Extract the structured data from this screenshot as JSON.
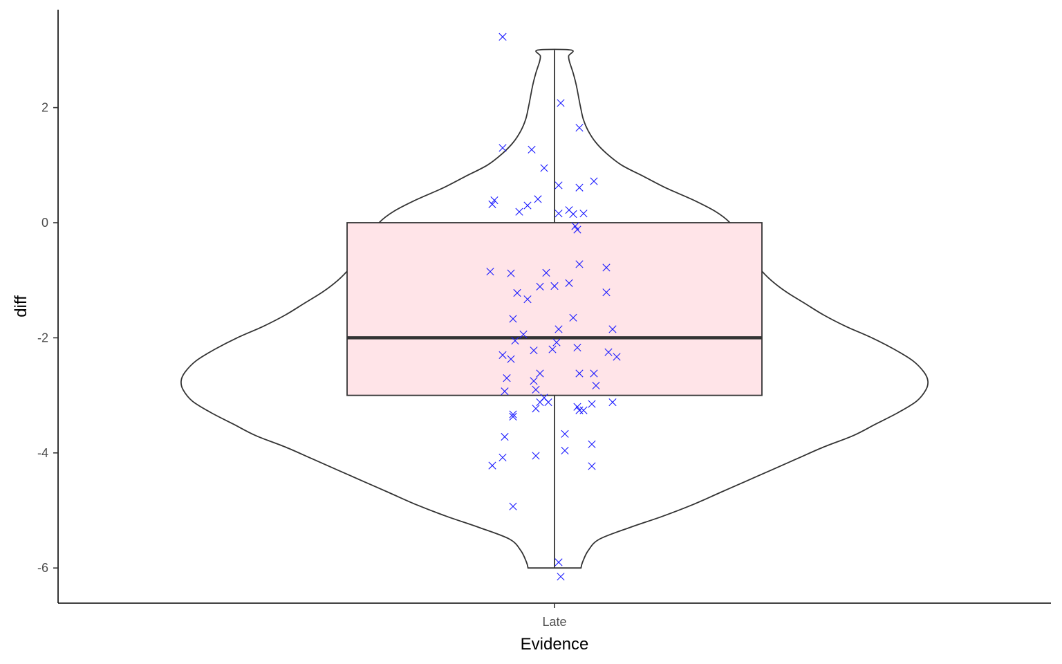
{
  "chart_data": {
    "type": "violin",
    "xlabel": "Evidence",
    "ylabel": "diff",
    "categories": [
      "Late"
    ],
    "ylim": [
      -6.6,
      3.6
    ],
    "yticks": [
      -6,
      -4,
      -2,
      0,
      2
    ],
    "ytick_labels": [
      "-6",
      "-4",
      "-2",
      "0",
      "2"
    ],
    "grid": false,
    "legend": "none",
    "colors": {
      "violin_outline": "#333333",
      "box_fill": "#ffe4e8",
      "box_outline": "#333333",
      "points": "#1a1aff",
      "axis": "#000000"
    },
    "violin": {
      "category": "Late",
      "range": [
        -6,
        3
      ],
      "density": [
        [
          -6.0,
          0.071
        ],
        [
          -5.9,
          0.075
        ],
        [
          -5.7,
          0.09
        ],
        [
          -5.5,
          0.12
        ],
        [
          -5.3,
          0.2
        ],
        [
          -5.1,
          0.29
        ],
        [
          -4.9,
          0.37
        ],
        [
          -4.7,
          0.44
        ],
        [
          -4.5,
          0.51
        ],
        [
          -4.3,
          0.58
        ],
        [
          -4.1,
          0.65
        ],
        [
          -3.9,
          0.72
        ],
        [
          -3.7,
          0.8
        ],
        [
          -3.5,
          0.86
        ],
        [
          -3.3,
          0.92
        ],
        [
          -3.1,
          0.97
        ],
        [
          -2.9,
          0.995
        ],
        [
          -2.75,
          1.0
        ],
        [
          -2.6,
          0.99
        ],
        [
          -2.4,
          0.96
        ],
        [
          -2.2,
          0.91
        ],
        [
          -2.0,
          0.85
        ],
        [
          -1.8,
          0.78
        ],
        [
          -1.6,
          0.72
        ],
        [
          -1.4,
          0.67
        ],
        [
          -1.2,
          0.62
        ],
        [
          -1.0,
          0.58
        ],
        [
          -0.8,
          0.55
        ],
        [
          -0.6,
          0.53
        ],
        [
          -0.4,
          0.51
        ],
        [
          -0.2,
          0.49
        ],
        [
          0.0,
          0.47
        ],
        [
          0.2,
          0.43
        ],
        [
          0.4,
          0.37
        ],
        [
          0.6,
          0.3
        ],
        [
          0.8,
          0.24
        ],
        [
          1.0,
          0.18
        ],
        [
          1.2,
          0.14
        ],
        [
          1.4,
          0.11
        ],
        [
          1.6,
          0.09
        ],
        [
          1.8,
          0.077
        ],
        [
          2.0,
          0.07
        ],
        [
          2.2,
          0.064
        ],
        [
          2.4,
          0.058
        ],
        [
          2.6,
          0.05
        ],
        [
          2.8,
          0.04
        ],
        [
          2.9,
          0.038
        ],
        [
          3.0,
          0.045
        ]
      ]
    },
    "box": {
      "category": "Late",
      "min": -6,
      "q1": -3,
      "median": -2,
      "q3": 0,
      "max": 3
    },
    "points": [
      {
        "x": -0.25,
        "y": 3.23
      },
      {
        "x": 0.03,
        "y": 2.08
      },
      {
        "x": 0.12,
        "y": 1.65
      },
      {
        "x": -0.25,
        "y": 1.3
      },
      {
        "x": -0.11,
        "y": 1.27
      },
      {
        "x": -0.05,
        "y": 0.95
      },
      {
        "x": 0.19,
        "y": 0.72
      },
      {
        "x": 0.02,
        "y": 0.65
      },
      {
        "x": 0.12,
        "y": 0.61
      },
      {
        "x": -0.29,
        "y": 0.39
      },
      {
        "x": -0.3,
        "y": 0.32
      },
      {
        "x": -0.08,
        "y": 0.41
      },
      {
        "x": -0.13,
        "y": 0.3
      },
      {
        "x": -0.17,
        "y": 0.19
      },
      {
        "x": 0.07,
        "y": 0.22
      },
      {
        "x": 0.09,
        "y": 0.15
      },
      {
        "x": 0.14,
        "y": 0.16
      },
      {
        "x": 0.02,
        "y": 0.16
      },
      {
        "x": 0.1,
        "y": -0.06
      },
      {
        "x": 0.11,
        "y": -0.12
      },
      {
        "x": -0.31,
        "y": -0.85
      },
      {
        "x": -0.21,
        "y": -0.88
      },
      {
        "x": -0.04,
        "y": -0.87
      },
      {
        "x": 0.12,
        "y": -0.72
      },
      {
        "x": 0.25,
        "y": -0.78
      },
      {
        "x": 0.25,
        "y": -1.21
      },
      {
        "x": 0.07,
        "y": -1.05
      },
      {
        "x": -0.07,
        "y": -1.11
      },
      {
        "x": 0.0,
        "y": -1.1
      },
      {
        "x": -0.18,
        "y": -1.22
      },
      {
        "x": -0.13,
        "y": -1.33
      },
      {
        "x": -0.2,
        "y": -1.67
      },
      {
        "x": 0.09,
        "y": -1.65
      },
      {
        "x": 0.02,
        "y": -1.85
      },
      {
        "x": 0.28,
        "y": -1.85
      },
      {
        "x": -0.15,
        "y": -1.94
      },
      {
        "x": -0.19,
        "y": -2.05
      },
      {
        "x": 0.01,
        "y": -2.08
      },
      {
        "x": -0.01,
        "y": -2.2
      },
      {
        "x": 0.11,
        "y": -2.17
      },
      {
        "x": -0.1,
        "y": -2.22
      },
      {
        "x": -0.25,
        "y": -2.3
      },
      {
        "x": -0.21,
        "y": -2.37
      },
      {
        "x": 0.26,
        "y": -2.25
      },
      {
        "x": 0.3,
        "y": -2.33
      },
      {
        "x": -0.23,
        "y": -2.7
      },
      {
        "x": -0.07,
        "y": -2.62
      },
      {
        "x": -0.1,
        "y": -2.75
      },
      {
        "x": 0.12,
        "y": -2.62
      },
      {
        "x": 0.19,
        "y": -2.62
      },
      {
        "x": 0.2,
        "y": -2.83
      },
      {
        "x": -0.24,
        "y": -2.93
      },
      {
        "x": -0.09,
        "y": -2.9
      },
      {
        "x": -0.05,
        "y": -3.04
      },
      {
        "x": -0.03,
        "y": -3.12
      },
      {
        "x": -0.07,
        "y": -3.12
      },
      {
        "x": 0.11,
        "y": -3.2
      },
      {
        "x": 0.12,
        "y": -3.26
      },
      {
        "x": 0.14,
        "y": -3.26
      },
      {
        "x": 0.18,
        "y": -3.15
      },
      {
        "x": 0.28,
        "y": -3.12
      },
      {
        "x": -0.09,
        "y": -3.23
      },
      {
        "x": -0.2,
        "y": -3.33
      },
      {
        "x": -0.2,
        "y": -3.37
      },
      {
        "x": 0.05,
        "y": -3.67
      },
      {
        "x": -0.24,
        "y": -3.72
      },
      {
        "x": 0.18,
        "y": -3.85
      },
      {
        "x": 0.05,
        "y": -3.96
      },
      {
        "x": -0.09,
        "y": -4.05
      },
      {
        "x": -0.25,
        "y": -4.08
      },
      {
        "x": -0.3,
        "y": -4.22
      },
      {
        "x": 0.18,
        "y": -4.23
      },
      {
        "x": -0.2,
        "y": -4.93
      },
      {
        "x": 0.02,
        "y": -5.9
      },
      {
        "x": 0.03,
        "y": -6.15
      }
    ]
  }
}
